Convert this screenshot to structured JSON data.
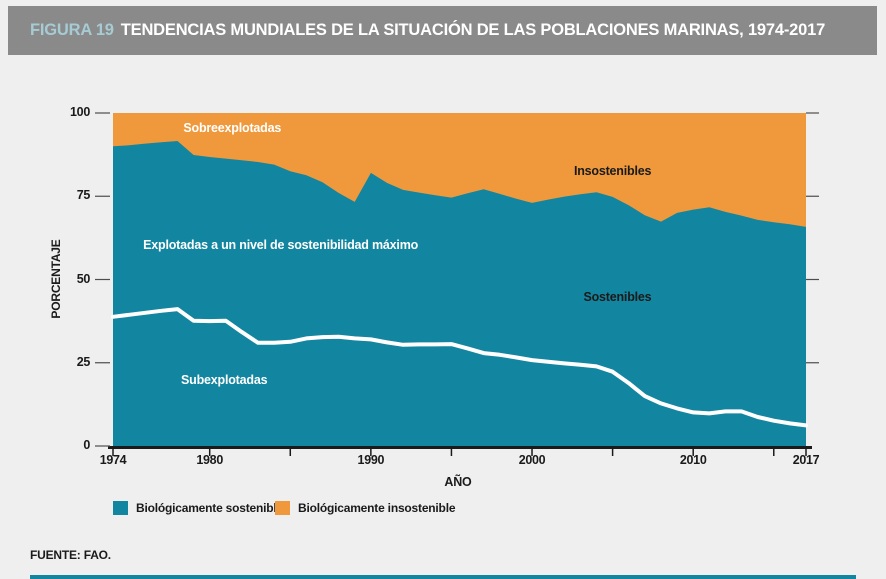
{
  "figure": {
    "label": "FIGURA 19",
    "title": "TENDENCIAS MUNDIALES DE LA SITUACIÓN DE LAS POBLACIONES MARINAS, 1974-2017",
    "source": "FUENTE: FAO."
  },
  "colors": {
    "sustainable": "#1286A0",
    "unsustainable": "#F0993C",
    "header_bg": "#8A8A8A",
    "figure_label": "#A6CBD3",
    "background": "#EFEFEF",
    "white_line": "#FFFFFF",
    "axis": "#1A1A1A",
    "tick_gray": "#4D4D4D"
  },
  "legend": [
    {
      "label": "Biológicamente sostenible",
      "color_key": "sustainable"
    },
    {
      "label": "Biológicamente insostenible",
      "color_key": "unsustainable"
    }
  ],
  "chart_data": {
    "type": "area",
    "title": "Tendencias mundiales de la situación de las poblaciones marinas, 1974-2017",
    "xlabel": "AÑO",
    "ylabel": "PORCENTAJE",
    "xlim": [
      1974,
      2017
    ],
    "ylim": [
      0,
      100
    ],
    "grid": false,
    "legend_position": "bottom",
    "x_ticks_labeled": [
      1974,
      1980,
      1990,
      2000,
      2010,
      2017
    ],
    "x_ticks_minor": [
      1985,
      1995,
      2005,
      2015
    ],
    "y_ticks": [
      0,
      25,
      50,
      75,
      100
    ],
    "x": [
      1974,
      1975,
      1976,
      1977,
      1978,
      1979,
      1980,
      1981,
      1982,
      1983,
      1984,
      1985,
      1986,
      1987,
      1988,
      1989,
      1990,
      1991,
      1992,
      1993,
      1994,
      1995,
      1996,
      1997,
      1998,
      1999,
      2000,
      2001,
      2002,
      2003,
      2004,
      2005,
      2006,
      2007,
      2008,
      2009,
      2010,
      2011,
      2012,
      2013,
      2014,
      2015,
      2016,
      2017
    ],
    "series": [
      {
        "name": "Biológicamente sostenible",
        "role": "sustainable",
        "render": "area-bottom",
        "values": [
          90.0,
          90.3,
          90.8,
          91.2,
          91.6,
          87.4,
          86.8,
          86.3,
          85.8,
          85.3,
          84.5,
          82.5,
          81.3,
          79.2,
          76.0,
          73.3,
          82.0,
          79.0,
          76.9,
          76.1,
          75.3,
          74.6,
          75.9,
          77.1,
          75.7,
          74.3,
          73.0,
          74.0,
          74.9,
          75.6,
          76.2,
          74.8,
          72.3,
          69.3,
          67.4,
          70.0,
          71.0,
          71.7,
          70.3,
          69.2,
          67.9,
          67.2,
          66.6,
          65.8
        ]
      },
      {
        "name": "Biológicamente insostenible",
        "role": "unsustainable",
        "render": "area-top",
        "values": [
          10.0,
          9.7,
          9.2,
          8.8,
          8.4,
          12.6,
          13.2,
          13.7,
          14.2,
          14.7,
          15.5,
          17.5,
          18.7,
          20.8,
          24.0,
          26.7,
          18.0,
          21.0,
          23.1,
          23.9,
          24.7,
          25.4,
          24.1,
          22.9,
          24.3,
          25.7,
          27.0,
          26.0,
          25.1,
          24.4,
          23.8,
          25.2,
          27.7,
          30.7,
          32.6,
          30.0,
          29.0,
          28.3,
          29.7,
          30.8,
          32.1,
          32.8,
          33.4,
          34.2
        ]
      },
      {
        "name": "Subexplotadas (línea divisoria blanca)",
        "role": "underfished",
        "render": "line",
        "values": [
          38.8,
          39.4,
          40.0,
          40.6,
          41.1,
          37.6,
          37.5,
          37.6,
          34.2,
          31.0,
          31.0,
          31.3,
          32.3,
          32.7,
          32.8,
          32.3,
          32.0,
          31.1,
          30.4,
          30.5,
          30.5,
          30.6,
          29.3,
          27.9,
          27.4,
          26.6,
          25.8,
          25.3,
          24.8,
          24.4,
          23.9,
          22.3,
          18.9,
          15.0,
          12.8,
          11.3,
          10.1,
          9.8,
          10.4,
          10.4,
          8.7,
          7.6,
          6.8,
          6.2
        ]
      }
    ],
    "annotations": [
      {
        "text": "Sobreexplotadas",
        "year": 1981.4,
        "pct": 95.5,
        "color": "#FFFFFF"
      },
      {
        "text": "Insostenibles",
        "year": 2005.0,
        "pct": 82.5,
        "color": "#1A1A1A"
      },
      {
        "text": "Explotadas a un nivel de sostenibilidad máximo",
        "year": 1984.4,
        "pct": 60.5,
        "color": "#FFFFFF"
      },
      {
        "text": "Sostenibles",
        "year": 2005.3,
        "pct": 44.7,
        "color": "#1A1A1A"
      },
      {
        "text": "Subexplotadas",
        "year": 1980.9,
        "pct": 19.8,
        "color": "#FFFFFF"
      }
    ]
  }
}
